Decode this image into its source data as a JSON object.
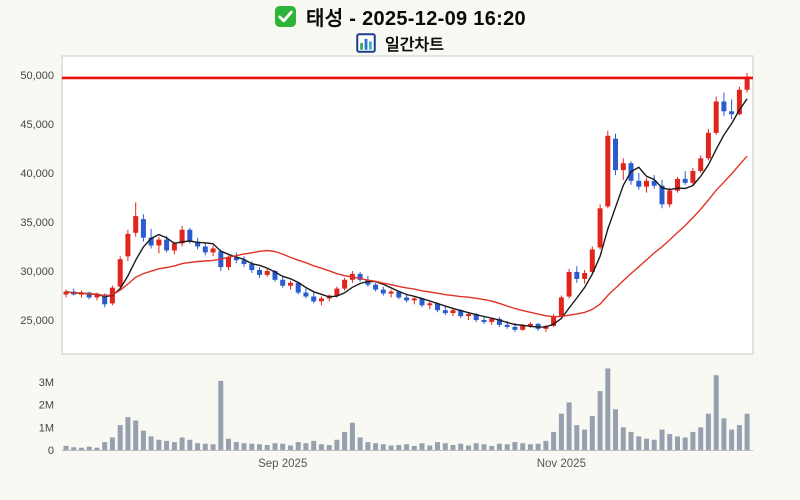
{
  "header": {
    "title": "태성 - 2025-12-09 16:20",
    "subtitle": "일간차트"
  },
  "colors": {
    "up": "#e1251d",
    "down": "#2b5cce",
    "ma_fast": "#1a1a1a",
    "ma_slow": "#e03427",
    "resistance": "#ee0f0a",
    "volume": "#97a0ae",
    "icon_green": "#2fb43a",
    "icon_frame": "#1d3f8f",
    "icon_bar1": "#3aa657",
    "icon_bar2": "#2e6fd0",
    "icon_bar3": "#45b8c8",
    "background": "#f9f9f4"
  },
  "chart_data": {
    "type": "candlestick",
    "title": "태성 - 2025-12-09 16:20",
    "subtitle": "일간차트",
    "candle_format": "open,high,low,close",
    "volume_unit": "M",
    "price_axis": {
      "min": 23500,
      "max": 50500
    },
    "y_ticks_price": [
      {
        "label": "50,000",
        "value": 50000
      },
      {
        "label": "45,000",
        "value": 45000
      },
      {
        "label": "40,000",
        "value": 40000
      },
      {
        "label": "35,000",
        "value": 35000
      },
      {
        "label": "30,000",
        "value": 30000
      },
      {
        "label": "25,000",
        "value": 25000
      }
    ],
    "y_ticks_volume": [
      {
        "label": "3M",
        "value": 3
      },
      {
        "label": "2M",
        "value": 2
      },
      {
        "label": "1M",
        "value": 1
      },
      {
        "label": "0",
        "value": 0
      }
    ],
    "x_ticks": [
      {
        "label": "Sep 2025",
        "index": 28
      },
      {
        "label": "Nov 2025",
        "index": 64
      }
    ],
    "resistance_line": 49700,
    "ma_fast_window": 5,
    "ma_slow_window": 20,
    "candles": [
      [
        27600,
        28100,
        27300,
        27900
      ],
      [
        27900,
        28200,
        27500,
        27600
      ],
      [
        27600,
        28000,
        27300,
        27800
      ],
      [
        27800,
        27900,
        27100,
        27300
      ],
      [
        27300,
        27800,
        27000,
        27600
      ],
      [
        27600,
        27700,
        26300,
        26600
      ],
      [
        26700,
        28500,
        26500,
        28300
      ],
      [
        28400,
        31500,
        28200,
        31200
      ],
      [
        31500,
        34200,
        31000,
        33800
      ],
      [
        33900,
        37000,
        33500,
        35600
      ],
      [
        35300,
        35800,
        33000,
        33400
      ],
      [
        33400,
        34300,
        32300,
        32600
      ],
      [
        32600,
        33500,
        31800,
        33200
      ],
      [
        33200,
        33600,
        31900,
        32100
      ],
      [
        32100,
        33000,
        31700,
        32800
      ],
      [
        32800,
        34600,
        32500,
        34200
      ],
      [
        34200,
        34400,
        32800,
        33000
      ],
      [
        33000,
        33400,
        32200,
        32500
      ],
      [
        32500,
        32900,
        31600,
        31900
      ],
      [
        31900,
        32600,
        31500,
        32300
      ],
      [
        32000,
        32200,
        30000,
        30400
      ],
      [
        30400,
        31600,
        30100,
        31400
      ],
      [
        31400,
        31900,
        30800,
        31100
      ],
      [
        31100,
        31500,
        30400,
        30700
      ],
      [
        30700,
        31000,
        29800,
        30100
      ],
      [
        30100,
        30400,
        29300,
        29600
      ],
      [
        29600,
        30200,
        29400,
        30000
      ],
      [
        30000,
        30100,
        28900,
        29100
      ],
      [
        29100,
        29400,
        28300,
        28500
      ],
      [
        28500,
        29000,
        28100,
        28800
      ],
      [
        28800,
        28900,
        27600,
        27800
      ],
      [
        27800,
        28200,
        27200,
        27400
      ],
      [
        27400,
        27800,
        26700,
        26900
      ],
      [
        26900,
        27400,
        26500,
        27200
      ],
      [
        27200,
        27600,
        26900,
        27500
      ],
      [
        27500,
        28400,
        27300,
        28200
      ],
      [
        28200,
        29300,
        28000,
        29100
      ],
      [
        29100,
        30000,
        28800,
        29700
      ],
      [
        29700,
        29900,
        28900,
        29100
      ],
      [
        29100,
        29500,
        28400,
        28600
      ],
      [
        28600,
        28800,
        27900,
        28100
      ],
      [
        28100,
        28400,
        27500,
        27700
      ],
      [
        27700,
        28100,
        27300,
        27900
      ],
      [
        27900,
        28000,
        27100,
        27300
      ],
      [
        27300,
        27600,
        26800,
        27000
      ],
      [
        27000,
        27400,
        26600,
        27200
      ],
      [
        27200,
        27300,
        26300,
        26500
      ],
      [
        26500,
        26900,
        26100,
        26700
      ],
      [
        26700,
        26800,
        25800,
        26000
      ],
      [
        26000,
        26400,
        25500,
        25700
      ],
      [
        25700,
        26200,
        25400,
        26000
      ],
      [
        26000,
        26100,
        25200,
        25400
      ],
      [
        25400,
        25800,
        25000,
        25600
      ],
      [
        25600,
        25700,
        24800,
        25000
      ],
      [
        25000,
        25400,
        24600,
        24800
      ],
      [
        24800,
        25200,
        24500,
        25100
      ],
      [
        25100,
        25300,
        24300,
        24500
      ],
      [
        24500,
        24900,
        24100,
        24300
      ],
      [
        24300,
        24700,
        23800,
        24000
      ],
      [
        24000,
        24600,
        23900,
        24400
      ],
      [
        24400,
        24800,
        24200,
        24600
      ],
      [
        24600,
        24700,
        23900,
        24100
      ],
      [
        24100,
        24500,
        23800,
        24400
      ],
      [
        24400,
        25600,
        24300,
        25400
      ],
      [
        25400,
        27500,
        25300,
        27300
      ],
      [
        27400,
        30200,
        27200,
        29900
      ],
      [
        29900,
        30500,
        28800,
        29200
      ],
      [
        29200,
        30100,
        28700,
        29800
      ],
      [
        29900,
        32500,
        29700,
        32200
      ],
      [
        32400,
        36800,
        32200,
        36400
      ],
      [
        36600,
        44300,
        36400,
        43800
      ],
      [
        43500,
        44000,
        39800,
        40300
      ],
      [
        40300,
        41500,
        39300,
        41000
      ],
      [
        41000,
        41200,
        38800,
        39200
      ],
      [
        39200,
        40000,
        38300,
        38600
      ],
      [
        38600,
        39500,
        38000,
        39200
      ],
      [
        39200,
        39800,
        38400,
        38700
      ],
      [
        38700,
        39300,
        36400,
        36800
      ],
      [
        36800,
        38500,
        36500,
        38200
      ],
      [
        38200,
        39600,
        38000,
        39400
      ],
      [
        39400,
        40200,
        38800,
        39000
      ],
      [
        39000,
        40500,
        38800,
        40200
      ],
      [
        40200,
        41800,
        40000,
        41500
      ],
      [
        41500,
        44500,
        41300,
        44100
      ],
      [
        44100,
        47800,
        43900,
        47300
      ],
      [
        47300,
        48200,
        45800,
        46300
      ],
      [
        46300,
        47500,
        45500,
        46000
      ],
      [
        46000,
        48800,
        45900,
        48500
      ],
      [
        48500,
        50200,
        48200,
        49750
      ]
    ],
    "volumes": [
      0.18,
      0.12,
      0.1,
      0.15,
      0.1,
      0.35,
      0.55,
      1.1,
      1.45,
      1.3,
      0.85,
      0.6,
      0.45,
      0.4,
      0.35,
      0.55,
      0.45,
      0.3,
      0.28,
      0.25,
      3.05,
      0.5,
      0.35,
      0.3,
      0.28,
      0.25,
      0.22,
      0.3,
      0.28,
      0.2,
      0.35,
      0.3,
      0.4,
      0.25,
      0.22,
      0.45,
      0.8,
      1.2,
      0.55,
      0.35,
      0.3,
      0.25,
      0.2,
      0.22,
      0.25,
      0.18,
      0.3,
      0.2,
      0.35,
      0.3,
      0.22,
      0.28,
      0.2,
      0.3,
      0.25,
      0.18,
      0.28,
      0.25,
      0.35,
      0.3,
      0.25,
      0.28,
      0.4,
      0.8,
      1.6,
      2.1,
      1.1,
      0.9,
      1.5,
      2.6,
      3.6,
      1.8,
      1.0,
      0.8,
      0.6,
      0.5,
      0.45,
      0.9,
      0.7,
      0.6,
      0.55,
      0.8,
      1.0,
      1.6,
      3.3,
      1.4,
      0.9,
      1.1,
      1.6
    ]
  }
}
